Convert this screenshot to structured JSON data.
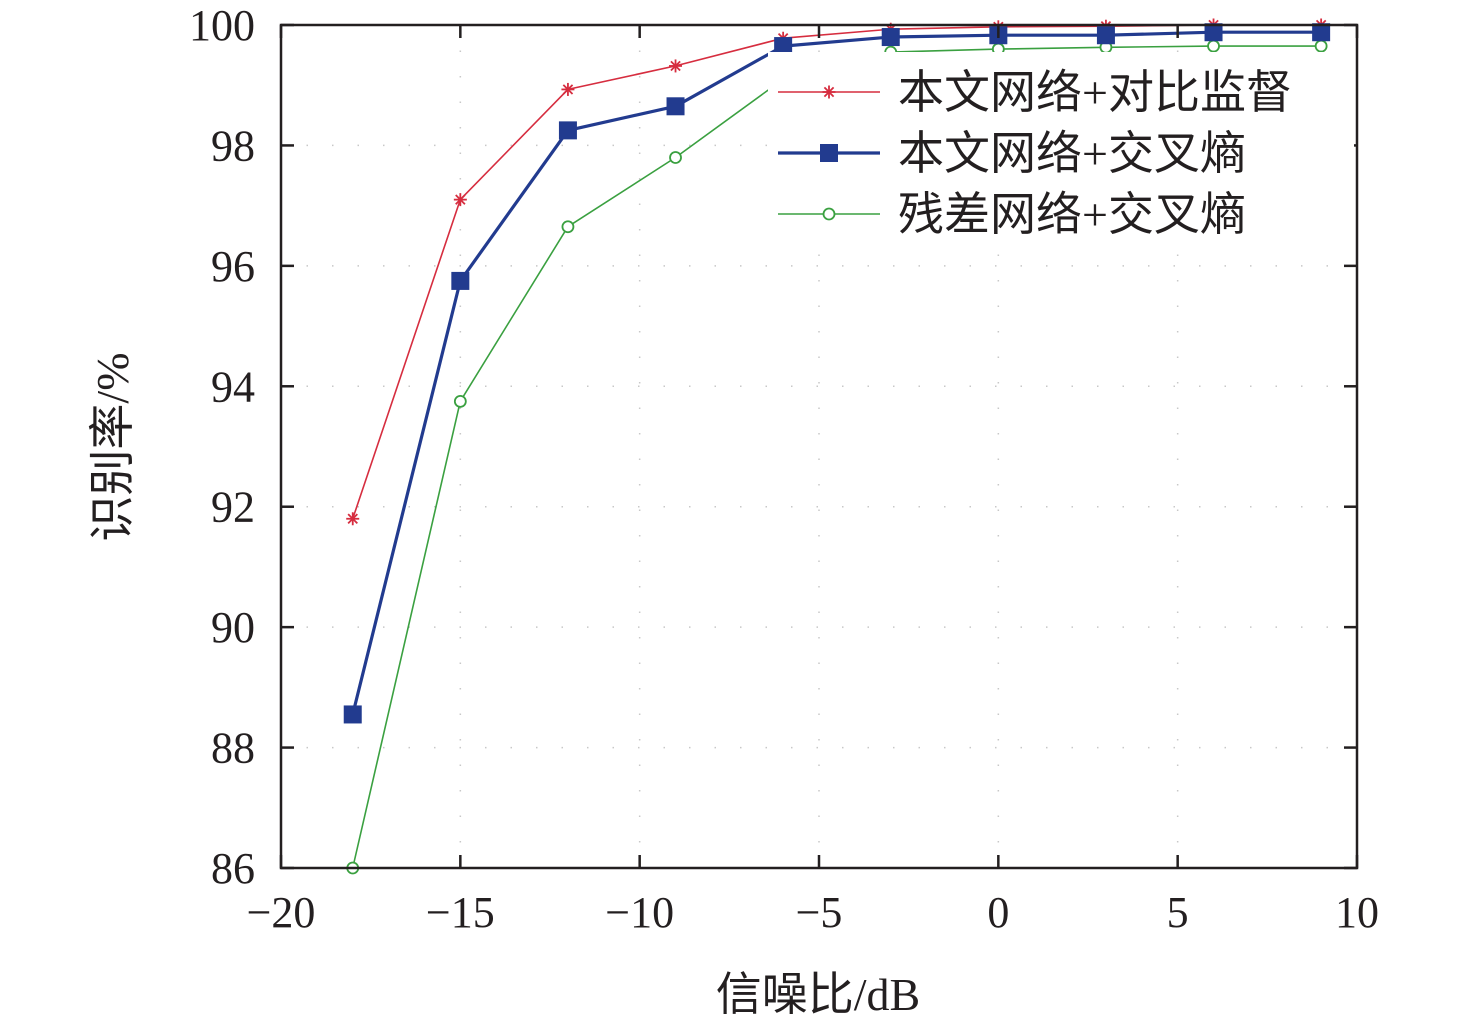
{
  "chart_data": {
    "type": "line",
    "title": "",
    "xlabel": "信噪比/dB",
    "ylabel": "识别率/%",
    "xlim": [
      -20,
      10
    ],
    "ylim": [
      86,
      100
    ],
    "xticks": [
      -20,
      -15,
      -10,
      -5,
      0,
      5,
      10
    ],
    "yticks": [
      86,
      88,
      90,
      92,
      94,
      96,
      98,
      100
    ],
    "xtick_labels": [
      "−20",
      "−15",
      "−10",
      "−5",
      "0",
      "5",
      "10"
    ],
    "ytick_labels": [
      "86",
      "88",
      "90",
      "92",
      "94",
      "96",
      "98",
      "100"
    ],
    "grid": "dotted",
    "legend_position": "top-right",
    "x": [
      -18,
      -15,
      -12,
      -9,
      -6,
      -3,
      0,
      3,
      6,
      9
    ],
    "series": [
      {
        "name": "本文网络+对比监督",
        "values": [
          91.8,
          97.1,
          98.93,
          99.32,
          99.78,
          99.93,
          99.97,
          99.98,
          100,
          100
        ],
        "color": "#d62d3f",
        "marker": "asterisk"
      },
      {
        "name": "本文网络+交叉熵",
        "values": [
          88.55,
          95.75,
          98.25,
          98.65,
          99.65,
          99.8,
          99.83,
          99.83,
          99.88,
          99.88
        ],
        "color": "#223b8f",
        "marker": "square"
      },
      {
        "name": "残差网络+交叉熵",
        "values": [
          86.0,
          93.75,
          96.65,
          97.8,
          99.1,
          99.55,
          99.6,
          99.63,
          99.65,
          99.65
        ],
        "color": "#3aa040",
        "marker": "circle"
      }
    ]
  }
}
